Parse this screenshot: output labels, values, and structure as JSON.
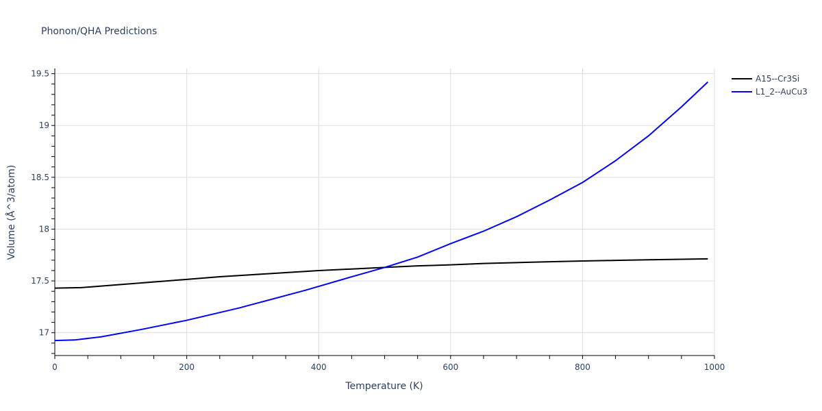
{
  "chart_data": {
    "type": "line",
    "title": "Phonon/QHA Predictions",
    "xlabel": "Temperature (K)",
    "ylabel": "Volume (Å^3/atom)",
    "xlim": [
      0,
      1000
    ],
    "ylim": [
      16.78,
      19.55
    ],
    "x_ticks": [
      0,
      200,
      400,
      600,
      800,
      1000
    ],
    "x_tick_labels": [
      "0",
      "200",
      "400",
      "600",
      "800",
      "1000"
    ],
    "y_ticks": [
      17,
      17.5,
      18,
      18.5,
      19,
      19.5
    ],
    "y_tick_labels": [
      "17",
      "17.5",
      "18",
      "18.5",
      "19",
      "19.5"
    ],
    "grid": true,
    "legend_position": "top-right",
    "series": [
      {
        "name": "A15--Cr3Si",
        "color": "#000000",
        "x": [
          0,
          40,
          100,
          150,
          200,
          250,
          300,
          350,
          400,
          450,
          500,
          550,
          600,
          650,
          700,
          750,
          800,
          850,
          900,
          950,
          990
        ],
        "y": [
          17.43,
          17.435,
          17.465,
          17.49,
          17.515,
          17.54,
          17.56,
          17.58,
          17.6,
          17.615,
          17.63,
          17.645,
          17.655,
          17.668,
          17.677,
          17.685,
          17.692,
          17.698,
          17.704,
          17.709,
          17.713
        ]
      },
      {
        "name": "L1_2--AuCu3",
        "color": "#0000ff",
        "x": [
          0,
          30,
          70,
          130,
          200,
          280,
          380,
          450,
          500,
          550,
          600,
          650,
          700,
          750,
          800,
          850,
          900,
          950,
          990
        ],
        "y": [
          16.925,
          16.93,
          16.96,
          17.03,
          17.12,
          17.24,
          17.41,
          17.54,
          17.63,
          17.73,
          17.86,
          17.98,
          18.12,
          18.28,
          18.45,
          18.66,
          18.9,
          19.18,
          19.42
        ]
      }
    ]
  }
}
